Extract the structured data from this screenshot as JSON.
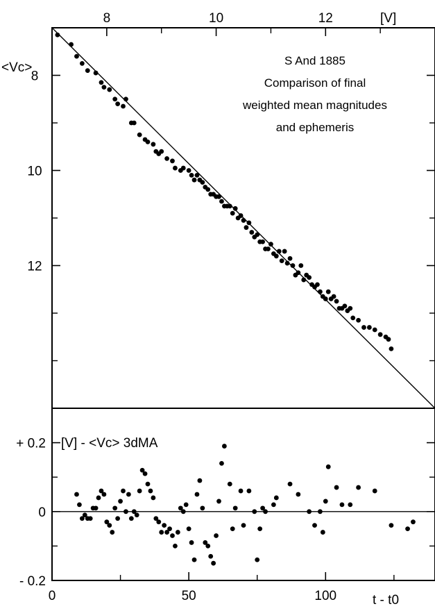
{
  "chart_data": [
    {
      "type": "scatter",
      "title_lines": [
        "S And 1885",
        "Comparison of final",
        "weighted mean magnitudes",
        "and ephemeris"
      ],
      "ylabel": "<Vc>",
      "x2label": "[V]",
      "xlim": [
        0,
        140
      ],
      "ylim": [
        15,
        7
      ],
      "y_ticks": [
        8,
        10,
        12
      ],
      "y_minor_ticks": [
        9,
        11,
        13,
        14
      ],
      "x2_ticks": [
        8,
        10,
        12
      ],
      "x2_lim": [
        7,
        14
      ],
      "ephemeris_line": {
        "x": [
          0,
          140
        ],
        "y": [
          7,
          15
        ]
      },
      "series": [
        {
          "x": [
            2,
            7,
            9,
            11,
            13,
            16,
            18,
            19,
            21,
            23,
            24,
            26,
            27,
            29,
            30,
            32,
            34,
            35,
            37,
            38,
            39,
            40,
            42,
            44,
            45,
            47,
            48,
            50,
            51,
            52,
            53,
            54,
            55,
            56,
            57,
            58,
            59,
            60,
            61,
            62,
            63,
            64,
            65,
            66,
            67,
            68,
            69,
            70,
            71,
            72,
            73,
            74,
            75,
            76,
            77,
            78,
            79,
            80,
            81,
            82,
            83,
            84,
            85,
            86,
            87,
            88,
            89,
            90,
            91,
            92,
            93,
            94,
            95,
            96,
            97,
            98,
            99,
            100,
            101,
            102,
            103,
            104,
            105,
            106,
            107,
            108,
            109,
            110,
            112,
            114,
            116,
            118,
            120,
            122,
            123,
            124
          ],
          "y": [
            7.15,
            7.35,
            7.6,
            7.75,
            7.9,
            7.95,
            8.15,
            8.25,
            8.3,
            8.5,
            8.6,
            8.65,
            8.5,
            9.0,
            9.0,
            9.25,
            9.35,
            9.4,
            9.45,
            9.6,
            9.65,
            9.6,
            9.75,
            9.8,
            9.95,
            10.0,
            9.95,
            10.0,
            10.1,
            10.2,
            10.1,
            10.2,
            10.25,
            10.35,
            10.4,
            10.5,
            10.5,
            10.55,
            10.55,
            10.65,
            10.75,
            10.75,
            10.75,
            10.9,
            10.8,
            11.0,
            10.95,
            11.05,
            11.2,
            11.1,
            11.3,
            11.4,
            11.35,
            11.5,
            11.5,
            11.65,
            11.65,
            11.55,
            11.75,
            11.8,
            11.7,
            11.9,
            11.7,
            11.95,
            11.85,
            12.0,
            12.2,
            12.15,
            12.0,
            12.3,
            12.2,
            12.25,
            12.4,
            12.45,
            12.4,
            12.55,
            12.65,
            12.7,
            12.55,
            12.7,
            12.65,
            12.75,
            12.9,
            12.9,
            12.85,
            12.95,
            12.9,
            13.1,
            13.15,
            13.3,
            13.3,
            13.35,
            13.45,
            13.5,
            13.55,
            13.75
          ]
        }
      ]
    },
    {
      "type": "scatter",
      "title": "[V] - <Vc> 3dMA",
      "xlabel": "t - t0",
      "xlim": [
        0,
        140
      ],
      "ylim": [
        -0.2,
        0.3
      ],
      "x_ticks": [
        0,
        50,
        100
      ],
      "x_minor_ticks": [
        25,
        75,
        125
      ],
      "y_ticks": [
        {
          "value": 0.2,
          "label": "+ 0.2"
        },
        {
          "value": 0,
          "label": "0"
        },
        {
          "value": -0.2,
          "label": "- 0.2"
        }
      ],
      "zero_line": true,
      "series": [
        {
          "x": [
            9,
            10,
            11,
            12,
            13,
            14,
            15,
            16,
            17,
            18,
            19,
            20,
            21,
            22,
            23,
            24,
            25,
            26,
            27,
            28,
            29,
            30,
            31,
            32,
            33,
            34,
            35,
            36,
            37,
            38,
            39,
            40,
            41,
            42,
            43,
            44,
            45,
            46,
            47,
            48,
            49,
            50,
            51,
            52,
            53,
            54,
            55,
            56,
            57,
            58,
            59,
            60,
            61,
            62,
            63,
            65,
            66,
            67,
            69,
            70,
            72,
            74,
            75,
            76,
            77,
            78,
            81,
            82,
            87,
            90,
            94,
            96,
            98,
            99,
            100,
            101,
            104,
            106,
            109,
            112,
            118,
            124,
            130,
            132
          ],
          "y": [
            0.05,
            0.02,
            -0.02,
            -0.01,
            -0.02,
            -0.02,
            0.01,
            0.01,
            0.04,
            0.06,
            0.05,
            -0.03,
            -0.04,
            -0.06,
            0.01,
            -0.02,
            0.03,
            0.06,
            0.0,
            0.05,
            -0.02,
            0.0,
            -0.01,
            0.06,
            0.12,
            0.11,
            0.08,
            0.06,
            0.04,
            -0.02,
            -0.03,
            -0.06,
            -0.04,
            -0.06,
            -0.05,
            -0.07,
            -0.1,
            -0.06,
            0.01,
            0.0,
            0.02,
            -0.05,
            -0.09,
            -0.14,
            0.05,
            0.09,
            0.01,
            -0.09,
            -0.1,
            -0.13,
            -0.15,
            -0.07,
            0.03,
            0.14,
            0.19,
            0.08,
            -0.05,
            0.01,
            0.06,
            -0.04,
            0.06,
            0.0,
            -0.14,
            -0.05,
            0.01,
            0.0,
            0.02,
            0.04,
            0.08,
            0.05,
            0.0,
            -0.04,
            0.0,
            -0.06,
            0.03,
            0.13,
            0.07,
            0.02,
            0.02,
            0.07,
            0.06,
            -0.04,
            -0.05,
            -0.03
          ]
        }
      ]
    }
  ]
}
